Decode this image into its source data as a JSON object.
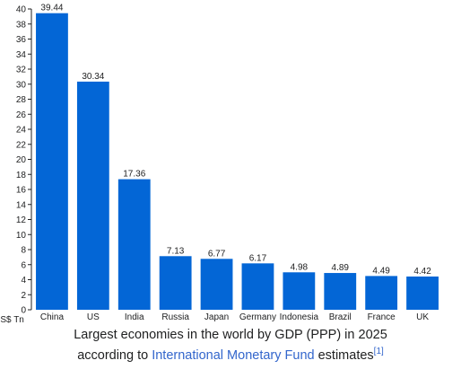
{
  "chart_data": {
    "type": "bar",
    "categories": [
      "China",
      "US",
      "India",
      "Russia",
      "Japan",
      "Germany",
      "Indonesia",
      "Brazil",
      "France",
      "UK"
    ],
    "values": [
      39.44,
      30.34,
      17.36,
      7.13,
      6.77,
      6.17,
      4.98,
      4.89,
      4.49,
      4.42
    ],
    "data_labels": [
      "39.44",
      "30.34",
      "17.36",
      "7.13",
      "6.77",
      "6.17",
      "4.98",
      "4.89",
      "4.49",
      "4.42"
    ],
    "title": "",
    "xlabel": "",
    "ylabel": "",
    "y_unit": "US$ Tn",
    "ylim": [
      0,
      40
    ],
    "yticks": [
      0,
      2,
      4,
      6,
      8,
      10,
      12,
      14,
      16,
      18,
      20,
      22,
      24,
      26,
      28,
      30,
      32,
      34,
      36,
      38,
      40
    ],
    "grid": false,
    "legend": "none",
    "bar_color": "#0366d6"
  },
  "caption": {
    "line1": "Largest economies in the world by GDP (PPP) in 2025",
    "line2_prefix": "according to ",
    "link_text": "International Monetary Fund",
    "line2_suffix": " estimates",
    "reference": "[1]"
  }
}
